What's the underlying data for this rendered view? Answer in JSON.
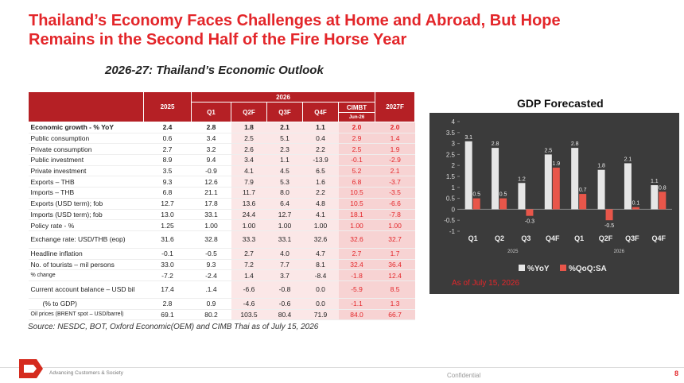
{
  "header": {
    "title": "Thailand’s Economy Faces Challenges at Home and Abroad, But Hope Remains in the Second Half of the Fire Horse Year",
    "subtitle": "2026-27: Thailand’s Economic Outlook"
  },
  "table": {
    "columns": {
      "year_2025": "2025",
      "year_2026": "2026",
      "quarters": [
        "Q1",
        "Q2F",
        "Q3F",
        "Q4F"
      ],
      "cimbt": "CIMBT",
      "cimbt_date": "Jun-26",
      "year_2027": "2027F"
    },
    "rows": [
      {
        "label": "Economic growth - % YoY",
        "values": [
          "2.4",
          "2.8",
          "1.8",
          "2.1",
          "1.1",
          "2.0",
          "2.0"
        ]
      },
      {
        "label": "Public consumption",
        "values": [
          "0.6",
          "3.4",
          "2.5",
          "5.1",
          "0.4",
          "2.9",
          "1.4"
        ]
      },
      {
        "label": "Private consumption",
        "values": [
          "2.7",
          "3.2",
          "2.6",
          "2.3",
          "2.2",
          "2.5",
          "1.9"
        ]
      },
      {
        "label": "Public investment",
        "values": [
          "8.9",
          "9.4",
          "3.4",
          "1.1",
          "-13.9",
          "-0.1",
          "-2.9"
        ]
      },
      {
        "label": "Private investment",
        "values": [
          "3.5",
          "-0.9",
          "4.1",
          "4.5",
          "6.5",
          "5.2",
          "2.1"
        ]
      },
      {
        "label": "Exports – THB",
        "values": [
          "9.3",
          "12.6",
          "7.9",
          "5.3",
          "1.6",
          "6.8",
          "-3.7"
        ]
      },
      {
        "label": "Imports – THB",
        "values": [
          "6.8",
          "21.1",
          "11.7",
          "8.0",
          "2.2",
          "10.5",
          "-3.5"
        ]
      },
      {
        "label": "Exports (USD term); fob",
        "values": [
          "12.7",
          "17.8",
          "13.6",
          "6.4",
          "4.8",
          "10.5",
          "-6.6"
        ]
      },
      {
        "label": "Imports (USD term); fob",
        "values": [
          "13.0",
          "33.1",
          "24.4",
          "12.7",
          "4.1",
          "18.1",
          "-7.8"
        ]
      },
      {
        "label": "Policy rate - %",
        "values": [
          "1.25",
          "1.00",
          "1.00",
          "1.00",
          "1.00",
          "1.00",
          "1.00"
        ]
      },
      {
        "label": "Exchange rate: USD/THB (eop)",
        "values": [
          "31.6",
          "32.8",
          "33.3",
          "33.1",
          "32.6",
          "32.6",
          "32.7"
        ]
      },
      {
        "label": "Headline inflation",
        "values": [
          "-0.1",
          "-0.5",
          "2.7",
          "4.0",
          "4.7",
          "2.7",
          "1.7"
        ]
      },
      {
        "label": "No. of tourists – mil persons",
        "values": [
          "33.0",
          "9.3",
          "7.2",
          "7.7",
          "8.1",
          "32.4",
          "36.4"
        ]
      },
      {
        "label": "% change",
        "values": [
          "-7.2",
          "-2.4",
          "1.4",
          "3.7",
          "-8.4",
          "-1.8",
          "12.4"
        ]
      },
      {
        "label": "Current account balance – USD bil",
        "values": [
          "17.4",
          ".1.4",
          "-6.6",
          "-0.8",
          "0.0",
          "-5.9",
          "8.5"
        ]
      },
      {
        "label": "(% to GDP)",
        "values": [
          "2.8",
          "0.9",
          "-4.6",
          "-0.6",
          "0.0",
          "-1.1",
          "1.3"
        ]
      },
      {
        "label": "Oil prices (BRENT spot – USD/barrel)",
        "values": [
          "69.1",
          "80.2",
          "103.5",
          "80.4",
          "71.9",
          "84.0",
          "66.7"
        ]
      }
    ]
  },
  "source": "Source: NESDC, BOT, Oxford Economic(OEM) and CIMB Thai as of July 15, 2026",
  "chart_data": {
    "type": "bar",
    "title": "GDP Forecasted",
    "categories": [
      "Q1",
      "Q2",
      "Q3",
      "Q4F",
      "Q1",
      "Q2F",
      "Q3F",
      "Q4F"
    ],
    "groups": [
      {
        "label": "2025",
        "span": 4
      },
      {
        "label": "2026",
        "span": 4
      }
    ],
    "series": [
      {
        "name": "%YoY",
        "color": "#e6e6e6",
        "values": [
          3.1,
          2.8,
          1.2,
          2.5,
          2.8,
          1.8,
          2.1,
          1.1
        ]
      },
      {
        "name": "%QoQ:SA",
        "color": "#e8564a",
        "values": [
          0.5,
          0.5,
          -0.3,
          1.9,
          0.7,
          -0.5,
          0.1,
          0.8
        ]
      }
    ],
    "ylim": [
      -1,
      4
    ],
    "yticks": [
      -1,
      -0.5,
      0,
      0.5,
      1,
      1.5,
      2,
      2.5,
      3,
      3.5,
      4
    ],
    "grid": false,
    "legend": "bottom",
    "annotation": "As of July 15, 2026"
  },
  "footer": {
    "tagline": "Advancing Customers & Society",
    "confidential": "Confidential",
    "page": "8"
  }
}
